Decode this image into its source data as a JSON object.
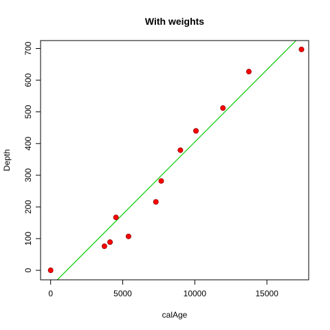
{
  "chart_data": {
    "type": "scatter",
    "title": "With weights",
    "xlabel": "calAge",
    "ylabel": "Depth",
    "xlim": [
      -700,
      17900
    ],
    "ylim": [
      -30,
      725
    ],
    "xticks": [
      0,
      5000,
      10000,
      15000
    ],
    "yticks": [
      0,
      100,
      200,
      300,
      400,
      500,
      600,
      700
    ],
    "grid": false,
    "legend": "none",
    "points": [
      {
        "x": 0,
        "y": 0
      },
      {
        "x": 3730,
        "y": 76
      },
      {
        "x": 4120,
        "y": 89
      },
      {
        "x": 4530,
        "y": 167
      },
      {
        "x": 5400,
        "y": 107
      },
      {
        "x": 7300,
        "y": 216
      },
      {
        "x": 7670,
        "y": 282
      },
      {
        "x": 9000,
        "y": 379
      },
      {
        "x": 10080,
        "y": 440
      },
      {
        "x": 11950,
        "y": 512
      },
      {
        "x": 13750,
        "y": 627
      },
      {
        "x": 17400,
        "y": 697
      }
    ],
    "fit_line": {
      "slope": 0.0456,
      "intercept": -51
    },
    "colors": {
      "points": "#ff0000",
      "point_outline": "#8b0000",
      "line": "#00cc00",
      "axes": "#000000"
    }
  }
}
